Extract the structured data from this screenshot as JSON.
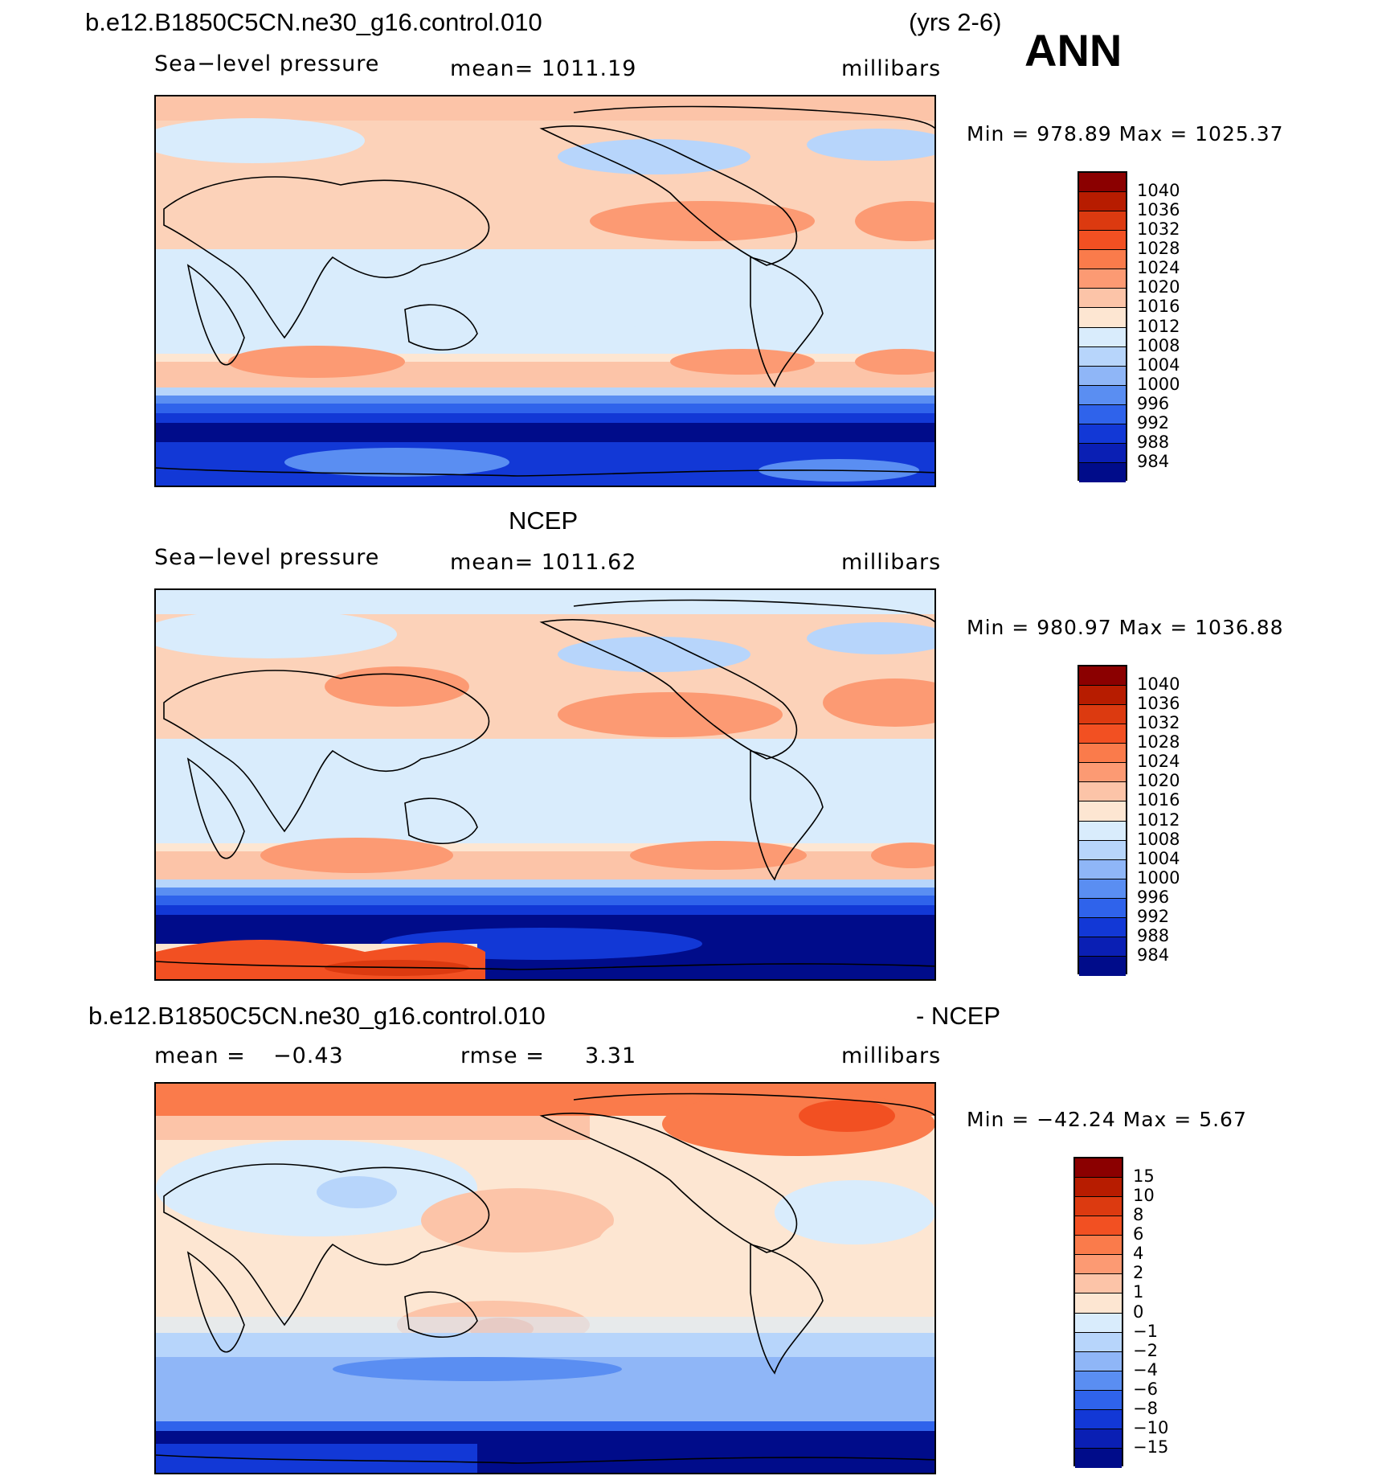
{
  "header": {
    "case_name": "b.e12.B1850C5CN.ne30_g16.control.010",
    "years": "(yrs 2-6)",
    "season": "ANN"
  },
  "panels": [
    {
      "id": "model",
      "title": "",
      "variable": "Sea−level pressure",
      "stat": "mean=  1011.19",
      "units": "millibars",
      "minmax": "Min  =  978.89  Max  =  1025.37",
      "colorbar": {
        "labels": [
          "1040",
          "1036",
          "1032",
          "1028",
          "1024",
          "1020",
          "1016",
          "1012",
          "1008",
          "1004",
          "1000",
          "996",
          "992",
          "988",
          "984"
        ],
        "colors": [
          "#8b0000",
          "#b71c00",
          "#dc3a10",
          "#f25022",
          "#fa7b4b",
          "#fc9a73",
          "#fcc4a8",
          "#fde6d2",
          "#d9ecfc",
          "#b7d5fb",
          "#8fb6f7",
          "#5a8ef2",
          "#2f63eb",
          "#1238d6",
          "#0a1fb4",
          "#000c8a"
        ]
      }
    },
    {
      "id": "obs",
      "title": "NCEP",
      "variable": "Sea−level pressure",
      "stat": "mean=  1011.62",
      "units": "millibars",
      "minmax": "Min  =  980.97  Max  =  1036.88",
      "colorbar": {
        "labels": [
          "1040",
          "1036",
          "1032",
          "1028",
          "1024",
          "1020",
          "1016",
          "1012",
          "1008",
          "1004",
          "1000",
          "996",
          "992",
          "988",
          "984"
        ],
        "colors": [
          "#8b0000",
          "#b71c00",
          "#dc3a10",
          "#f25022",
          "#fa7b4b",
          "#fc9a73",
          "#fcc4a8",
          "#fde6d2",
          "#d9ecfc",
          "#b7d5fb",
          "#8fb6f7",
          "#5a8ef2",
          "#2f63eb",
          "#1238d6",
          "#0a1fb4",
          "#000c8a"
        ]
      }
    },
    {
      "id": "diff",
      "title_left": "b.e12.B1850C5CN.ne30_g16.control.010",
      "title_right": "- NCEP",
      "mean_label": "mean  =",
      "mean_value": "−0.43",
      "rmse_label": "rmse  =",
      "rmse_value": "3.31",
      "units": "millibars",
      "minmax": "Min  =  −42.24  Max  =     5.67",
      "colorbar": {
        "labels": [
          "15",
          "10",
          "8",
          "6",
          "4",
          "2",
          "1",
          "0",
          "−1",
          "−2",
          "−4",
          "−6",
          "−8",
          "−10",
          "−15"
        ],
        "colors": [
          "#8b0000",
          "#b71c00",
          "#dc3a10",
          "#f25022",
          "#fa7b4b",
          "#fc9a73",
          "#fcc4a8",
          "#fde6d2",
          "#d9ecfc",
          "#b7d5fb",
          "#8fb6f7",
          "#5a8ef2",
          "#2f63eb",
          "#1238d6",
          "#0a1fb4",
          "#000c8a"
        ]
      }
    }
  ]
}
